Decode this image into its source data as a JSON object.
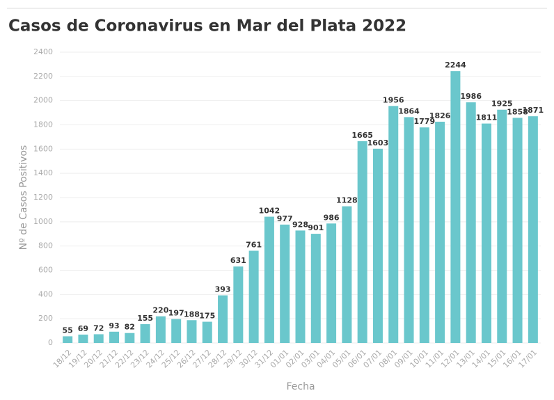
{
  "chart_data": {
    "type": "bar",
    "title": "Casos de Coronavirus en Mar del Plata 2022",
    "x_label": "Fecha",
    "y_label": "Nº de Casos Positivos",
    "categories": [
      "18/12",
      "19/12",
      "20/12",
      "21/12",
      "22/12",
      "23/12",
      "24/12",
      "25/12",
      "26/12",
      "27/12",
      "28/12",
      "29/12",
      "30/12",
      "31/12",
      "01/01",
      "02/01",
      "03/01",
      "04/01",
      "05/01",
      "06/01",
      "07/01",
      "08/01",
      "09/01",
      "10/01",
      "11/01",
      "12/01",
      "13/01",
      "14/01",
      "15/01",
      "16/01",
      "17/01"
    ],
    "values": [
      55,
      69,
      72,
      93,
      82,
      155,
      220,
      197,
      188,
      175,
      393,
      631,
      761,
      1042,
      977,
      928,
      901,
      986,
      1128,
      1665,
      1603,
      1956,
      1864,
      1779,
      1826,
      2244,
      1986,
      1811,
      1925,
      1858,
      1871
    ],
    "color": "#6ac7cc",
    "ylim": [
      0,
      2400
    ],
    "yticks": [
      0,
      200,
      400,
      600,
      800,
      1000,
      1200,
      1400,
      1600,
      1800,
      2000,
      2200,
      2400
    ],
    "grid": true
  }
}
